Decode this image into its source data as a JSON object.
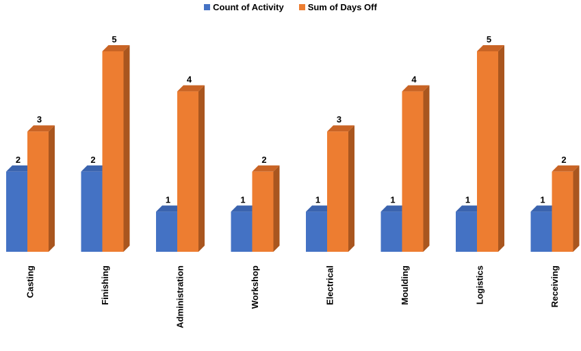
{
  "chart_data": {
    "type": "bar",
    "categories": [
      "Casting",
      "Finishing",
      "Administration",
      "Workshop",
      "Electrical",
      "Moulding",
      "Logistics",
      "Receiving"
    ],
    "series": [
      {
        "name": "Count of Activity",
        "values": [
          2,
          2,
          1,
          1,
          1,
          1,
          1,
          1
        ],
        "color": "#4472C4"
      },
      {
        "name": "Sum of Days Off",
        "values": [
          3,
          5,
          4,
          2,
          3,
          4,
          5,
          2
        ],
        "color": "#ED7D31"
      }
    ],
    "ylim": [
      0,
      5
    ],
    "legend_position": "top-center",
    "style": "3d-clustered-column",
    "grid": false
  }
}
